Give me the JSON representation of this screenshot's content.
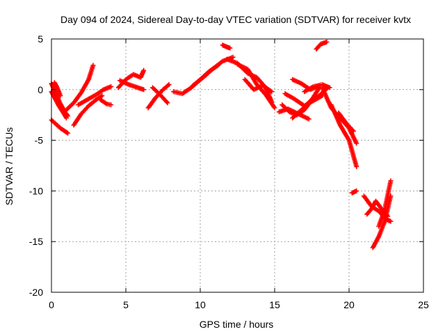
{
  "chart_data": {
    "type": "scatter",
    "title": "Day 094 of 2024, Sidereal Day-to-day VTEC variation (SDTVAR) for receiver kvtx",
    "xlabel": "GPS time / hours",
    "ylabel": "SDTVAR / TECUs",
    "xlim": [
      0,
      25
    ],
    "ylim": [
      -20,
      5
    ],
    "xticks": [
      "0",
      "5",
      "10",
      "15",
      "20",
      "25"
    ],
    "yticks": [
      "5",
      "0",
      "-5",
      "-10",
      "-15",
      "-20"
    ],
    "grid": true,
    "marker": "plus",
    "color": "#ff0000",
    "series": [
      {
        "segments": [
          {
            "x": [
              0.0,
              0.3,
              0.6,
              0.9,
              1.1
            ],
            "y": [
              0.6,
              -0.4,
              -1.4,
              -2.2,
              -2.6
            ]
          },
          {
            "x": [
              0.0,
              0.25,
              0.5,
              0.8,
              1.0
            ],
            "y": [
              -0.2,
              -0.9,
              -1.6,
              -2.3,
              -2.8
            ]
          },
          {
            "x": [
              0.0,
              0.3,
              0.6,
              0.9,
              1.1
            ],
            "y": [
              -3.0,
              -3.4,
              -3.8,
              -4.1,
              -4.3
            ]
          },
          {
            "x": [
              0.2,
              0.35,
              0.5,
              0.6
            ],
            "y": [
              0.7,
              0.3,
              -0.2,
              -0.6
            ]
          },
          {
            "x": [
              1.0,
              1.5,
              2.0,
              2.5,
              2.8
            ],
            "y": [
              -2.0,
              -1.3,
              -0.3,
              1.0,
              2.4
            ]
          },
          {
            "x": [
              1.5,
              2.0,
              2.5,
              3.0,
              3.4
            ],
            "y": [
              -3.5,
              -2.4,
              -1.6,
              -1.0,
              -0.6
            ]
          },
          {
            "x": [
              1.8,
              2.4,
              3.0,
              3.5,
              4.0
            ],
            "y": [
              -1.5,
              -1.0,
              -0.5,
              0.0,
              0.3
            ]
          },
          {
            "x": [
              3.3,
              3.7,
              4.0
            ],
            "y": [
              -1.0,
              -1.4,
              -1.5
            ]
          },
          {
            "x": [
              4.5,
              5.0,
              5.5,
              6.0,
              6.2
            ],
            "y": [
              0.2,
              1.0,
              1.5,
              1.2,
              1.9
            ]
          },
          {
            "x": [
              4.6,
              5.2,
              5.8,
              6.2
            ],
            "y": [
              0.9,
              0.5,
              0.2,
              0.0
            ]
          },
          {
            "x": [
              6.5,
              7.0,
              7.5,
              7.9
            ],
            "y": [
              -1.8,
              -0.8,
              0.0,
              0.5
            ]
          },
          {
            "x": [
              6.8,
              7.3,
              7.8
            ],
            "y": [
              0.2,
              -0.5,
              -1.3
            ]
          },
          {
            "x": [
              8.2,
              8.8,
              9.4,
              10.0,
              10.6,
              11.2
            ],
            "y": [
              -0.2,
              -0.4,
              0.2,
              1.0,
              1.8,
              2.4
            ]
          },
          {
            "x": [
              9.5,
              10.2,
              10.8,
              11.5,
              12.2
            ],
            "y": [
              0.4,
              1.2,
              2.0,
              2.8,
              3.2
            ]
          },
          {
            "x": [
              11.5,
              11.8,
              12.0
            ],
            "y": [
              4.4,
              4.2,
              4.1
            ]
          },
          {
            "x": [
              11.8,
              12.5,
              13.2,
              13.8,
              14.4,
              14.8
            ],
            "y": [
              3.0,
              2.6,
              1.6,
              1.2,
              0.2,
              -1.2
            ]
          },
          {
            "x": [
              12.5,
              13.2,
              13.8,
              14.4,
              15.0
            ],
            "y": [
              2.5,
              2.0,
              0.5,
              -0.5,
              -1.8
            ]
          },
          {
            "x": [
              13.0,
              13.6,
              14.2,
              14.8
            ],
            "y": [
              1.0,
              0.0,
              0.4,
              -0.2
            ]
          },
          {
            "x": [
              15.5,
              16.0,
              16.5,
              17.0,
              17.5,
              18.0
            ],
            "y": [
              -1.5,
              -2.2,
              -2.5,
              -2.0,
              -1.0,
              0.2
            ]
          },
          {
            "x": [
              15.7,
              16.3,
              17.0,
              17.6,
              18.2
            ],
            "y": [
              -0.4,
              -0.9,
              -1.6,
              -1.1,
              -0.6
            ]
          },
          {
            "x": [
              16.2,
              16.8,
              17.4,
              18.0,
              18.5
            ],
            "y": [
              -2.8,
              -2.0,
              -1.1,
              -0.6,
              0.1
            ]
          },
          {
            "x": [
              15.3,
              15.9,
              16.6,
              17.3
            ],
            "y": [
              -2.2,
              -1.9,
              -2.4,
              -2.9
            ]
          },
          {
            "x": [
              16.2,
              16.8,
              17.4,
              18.0
            ],
            "y": [
              1.0,
              0.6,
              0.0,
              0.4
            ]
          },
          {
            "x": [
              17.0,
              17.6,
              18.2,
              18.7
            ],
            "y": [
              -0.2,
              0.3,
              0.5,
              0.2
            ]
          },
          {
            "x": [
              17.8,
              18.1,
              18.5
            ],
            "y": [
              4.0,
              4.5,
              4.7
            ]
          },
          {
            "x": [
              18.2,
              18.8,
              19.4,
              20.0,
              20.5
            ],
            "y": [
              0.2,
              -1.8,
              -2.8,
              -3.8,
              -5.3
            ]
          },
          {
            "x": [
              18.8,
              19.4,
              20.0,
              20.5
            ],
            "y": [
              -1.5,
              -3.5,
              -5.0,
              -7.6
            ]
          },
          {
            "x": [
              19.3,
              19.8,
              20.3
            ],
            "y": [
              -2.3,
              -3.3,
              -4.1
            ]
          },
          {
            "x": [
              20.2,
              20.5
            ],
            "y": [
              -10.2,
              -10.0
            ]
          },
          {
            "x": [
              21.2,
              21.5,
              21.8,
              22.2,
              22.6
            ],
            "y": [
              -12.3,
              -11.8,
              -11.0,
              -11.8,
              -12.5
            ]
          },
          {
            "x": [
              21.0,
              21.5,
              22.0,
              22.5,
              22.8
            ],
            "y": [
              -10.5,
              -11.5,
              -12.0,
              -12.8,
              -13.0
            ]
          },
          {
            "x": [
              21.6,
              22.0,
              22.4,
              22.8
            ],
            "y": [
              -15.6,
              -14.5,
              -13.0,
              -10.5
            ]
          },
          {
            "x": [
              22.0,
              22.4,
              22.8
            ],
            "y": [
              -13.5,
              -11.8,
              -9.0
            ]
          }
        ]
      }
    ]
  }
}
